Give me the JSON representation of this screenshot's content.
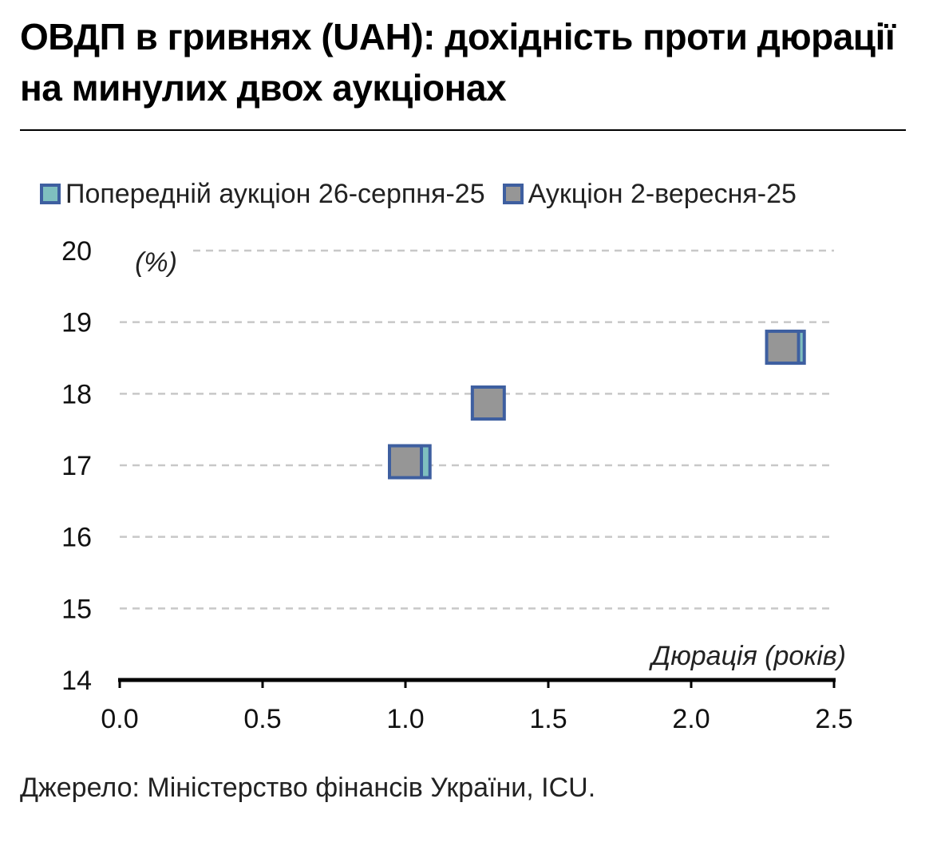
{
  "title": "ОВДП в гривнях (UAH): дохідність проти дюрації на минулих двох аукціонах",
  "source": "Джерело: Міністерство фінансів України, ICU.",
  "colors": {
    "marker_border": "#3e5fa0",
    "previous_fill": "#7fbfbf",
    "current_fill": "#969696",
    "grid": "#c8c8c8",
    "axis": "#000000"
  },
  "chart_data": {
    "type": "scatter",
    "title": "ОВДП в гривнях (UAH): дохідність проти дюрації на минулих двох аукціонах",
    "xlabel": "Дюрація (років)",
    "ylabel": "(%)",
    "xlim": [
      0,
      2.5
    ],
    "ylim": [
      14,
      20
    ],
    "x_ticks": [
      "0.0",
      "0.5",
      "1.0",
      "1.5",
      "2.0",
      "2.5"
    ],
    "y_ticks": [
      "14",
      "15",
      "16",
      "17",
      "18",
      "19",
      "20"
    ],
    "grid": "horizontal dashed",
    "legend_position": "top",
    "series": [
      {
        "name": "Попередній аукціон 26-серпня-25",
        "points": [
          {
            "x": 1.03,
            "y": 17.05
          },
          {
            "x": 2.34,
            "y": 18.65
          }
        ]
      },
      {
        "name": "Аукціон 2-вересня-25",
        "points": [
          {
            "x": 1.0,
            "y": 17.05
          },
          {
            "x": 1.29,
            "y": 17.87
          },
          {
            "x": 2.32,
            "y": 18.65
          }
        ]
      }
    ]
  }
}
